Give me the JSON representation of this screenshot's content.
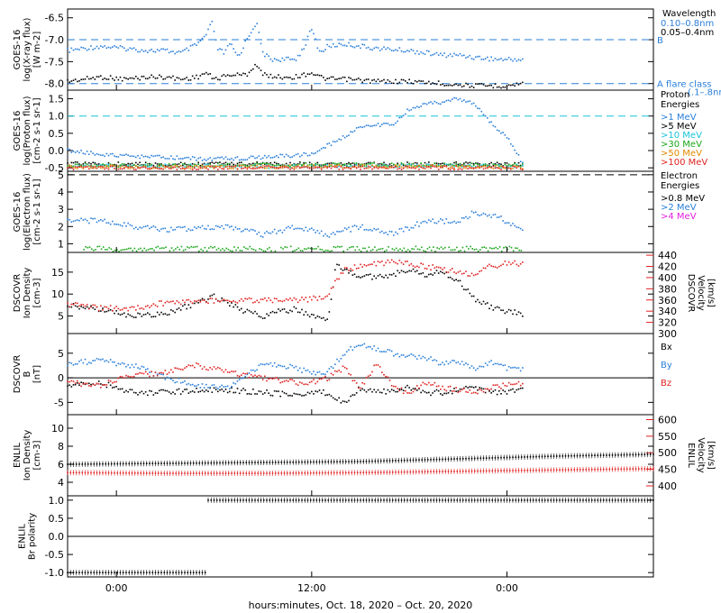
{
  "chart_data": {
    "type": "scatter",
    "x_axis": {
      "label": "hours:minutes, Oct. 18, 2020 – Oct. 20, 2020",
      "ticks": [
        "0:00",
        "12:00",
        "0:00"
      ],
      "range_hours": [
        -3,
        33
      ]
    },
    "panels": [
      {
        "id": "xray",
        "ylabel": [
          "GOES-16",
          "log(X-ray flux)",
          "[W m-2]"
        ],
        "ylim": [
          -8.15,
          -6.3
        ],
        "yticks": [
          "-6.5",
          "-7.0",
          "-7.5",
          "-8.0"
        ],
        "ytick_values": [
          -6.5,
          -7.0,
          -7.5,
          -8.0
        ],
        "legend_title": "Wavelength",
        "legend": [
          {
            "label": "0.10–0.8nm",
            "color": "#2a7fd9"
          },
          {
            "label": "0.05–0.4nm",
            "color": "#000000"
          }
        ],
        "annotations": [
          {
            "text": "B",
            "y": -7.0,
            "color": "#2a7fd9"
          },
          {
            "text": "A  flare class",
            "y": -8.0,
            "color": "#2a7fd9"
          },
          {
            "text": "(.1–.8nm)",
            "y": -8.0,
            "color": "#2a7fd9"
          }
        ],
        "series": [
          {
            "name": "0.10–0.8nm",
            "color": "#2a7fd9",
            "x": [
              -3,
              -1,
              0.5,
              2,
              3,
              4,
              5,
              5.5,
              5.9,
              6.2,
              6.6,
              7,
              7.5,
              8,
              8.6,
              9,
              9.5,
              10,
              11,
              11.5,
              12,
              12.5,
              13,
              14,
              16,
              18,
              20,
              21,
              22,
              23.5,
              24,
              25
            ],
            "y": [
              -7.25,
              -7.15,
              -7.2,
              -7.25,
              -7.25,
              -7.3,
              -7.1,
              -6.9,
              -6.6,
              -7.2,
              -7.3,
              -7.1,
              -7.4,
              -7.0,
              -6.6,
              -7.3,
              -7.45,
              -7.45,
              -7.45,
              -7.2,
              -6.75,
              -7.3,
              -7.15,
              -7.1,
              -7.2,
              -7.25,
              -7.35,
              -7.35,
              -7.4,
              -7.45,
              -7.45,
              -7.45
            ]
          },
          {
            "name": "0.05–0.4nm",
            "color": "#000000",
            "x": [
              -3,
              -1,
              0.5,
              2,
              3,
              4,
              5,
              5.5,
              6,
              6.5,
              7,
              8,
              8.6,
              9,
              10,
              11,
              12,
              12.5,
              13,
              14,
              16,
              18,
              20,
              22,
              24,
              25
            ],
            "y": [
              -7.95,
              -7.85,
              -7.9,
              -7.85,
              -7.85,
              -7.9,
              -7.85,
              -7.75,
              -7.9,
              -7.85,
              -7.8,
              -7.8,
              -7.55,
              -7.8,
              -7.85,
              -7.85,
              -7.75,
              -7.85,
              -7.9,
              -7.9,
              -7.95,
              -7.95,
              -8.0,
              -8.05,
              -8.05,
              -8.0
            ]
          }
        ]
      },
      {
        "id": "proton",
        "ylabel": [
          "GOES-16",
          "log(Proton flux)",
          "[cm-2 s-1 sr-1]"
        ],
        "ylim": [
          -0.6,
          1.75
        ],
        "yticks": [
          "1.5",
          "1.0",
          "0.5",
          "0.0",
          "-0.5"
        ],
        "ytick_values": [
          1.5,
          1.0,
          0.5,
          0.0,
          -0.5
        ],
        "legend_title": "Proton Energies",
        "legend": [
          {
            "label": ">1 MeV",
            "color": "#2a7fd9"
          },
          {
            "label": ">5 MeV",
            "color": "#000000"
          },
          {
            "label": ">10 MeV",
            "color": "#19c4d8"
          },
          {
            "label": ">30 MeV",
            "color": "#1aa61a"
          },
          {
            "label": ">50 MeV",
            "color": "#e08a00"
          },
          {
            "label": ">100 MeV",
            "color": "#e02020"
          }
        ],
        "threshold_y": 1.0,
        "series": [
          {
            "name": ">1 MeV",
            "color": "#2a7fd9",
            "x": [
              -3,
              0,
              3,
              6,
              9,
              12,
              13,
              14,
              15,
              16,
              17,
              18,
              19,
              20,
              21,
              22,
              22.5,
              23,
              24,
              25
            ],
            "y": [
              0.0,
              -0.15,
              -0.2,
              -0.25,
              -0.2,
              -0.1,
              0.15,
              0.4,
              0.7,
              0.75,
              0.75,
              1.2,
              1.35,
              1.4,
              1.5,
              1.35,
              1.1,
              0.8,
              0.4,
              -0.4
            ]
          },
          {
            "name": ">5 MeV",
            "color": "#000000",
            "x": [
              -3,
              3,
              9,
              15,
              21,
              25
            ],
            "y": [
              -0.38,
              -0.4,
              -0.38,
              -0.4,
              -0.38,
              -0.4
            ]
          },
          {
            "name": ">10 MeV",
            "color": "#19c4d8",
            "x": [
              -3,
              3,
              9,
              15,
              21,
              25
            ],
            "y": [
              -0.45,
              -0.44,
              -0.46,
              -0.45,
              -0.44,
              -0.45
            ]
          },
          {
            "name": ">30 MeV",
            "color": "#1aa61a",
            "x": [
              -3,
              3,
              9,
              15,
              21,
              25
            ],
            "y": [
              -0.42,
              -0.43,
              -0.42,
              -0.41,
              -0.42,
              -0.43
            ]
          },
          {
            "name": ">50 MeV",
            "color": "#e08a00",
            "x": [
              -3,
              3,
              9,
              15,
              21,
              25
            ],
            "y": [
              -0.47,
              -0.48,
              -0.47,
              -0.46,
              -0.47,
              -0.48
            ]
          },
          {
            "name": ">100 MeV",
            "color": "#e02020",
            "x": [
              -3,
              3,
              9,
              15,
              21,
              25
            ],
            "y": [
              -0.5,
              -0.5,
              -0.49,
              -0.5,
              -0.5,
              -0.5
            ]
          }
        ]
      },
      {
        "id": "electron",
        "ylabel": [
          "GOES-16",
          "log(Electron flux)",
          "[cm-2 s-1 sr-1]"
        ],
        "ylim": [
          0.5,
          5.2
        ],
        "yticks": [
          "5",
          "4",
          "3",
          "2",
          "1"
        ],
        "ytick_values": [
          5,
          4,
          3,
          2,
          1
        ],
        "legend_title": "Electron Energies",
        "legend": [
          {
            "label": ">0.8 MeV",
            "color": "#000000"
          },
          {
            "label": ">2 MeV",
            "color": "#2a7fd9"
          },
          {
            "label": ">4 MeV",
            "color": "#e020e0"
          }
        ],
        "threshold_y": 5.0,
        "series": [
          {
            "name": ">2 MeV",
            "color": "#2a7fd9",
            "x": [
              -3,
              -1,
              1,
              3,
              5,
              7,
              9,
              11,
              13,
              15,
              17,
              19,
              21,
              22,
              23,
              24,
              25
            ],
            "y": [
              2.4,
              2.3,
              2.0,
              1.8,
              1.9,
              2.0,
              1.5,
              2.0,
              1.5,
              2.0,
              1.6,
              2.3,
              2.3,
              2.8,
              2.7,
              2.3,
              1.8
            ]
          },
          {
            "name": ">0.8 MeV",
            "color": "#1aa61a",
            "x": [
              -2,
              2,
              6,
              10,
              14,
              18,
              22,
              25
            ],
            "y": [
              0.7,
              0.7,
              0.7,
              0.7,
              0.7,
              0.7,
              0.7,
              0.7
            ]
          }
        ]
      },
      {
        "id": "dscovr_density",
        "ylabel": [
          "DSCOVR",
          "Ion Density",
          "[cm-3]"
        ],
        "ylim": [
          1,
          19.5
        ],
        "yticks": [
          "15",
          "10",
          "5"
        ],
        "ytick_values": [
          15,
          10,
          5
        ],
        "right_ylabel": [
          "DSCOVR",
          "Velocity",
          "[km/s]"
        ],
        "right_ylim": [
          300,
          445
        ],
        "right_yticks": [
          "440",
          "420",
          "400",
          "380",
          "360",
          "340",
          "320",
          "300"
        ],
        "right_ytick_values": [
          440,
          420,
          400,
          380,
          360,
          340,
          320,
          300
        ],
        "series": [
          {
            "name": "Density",
            "color": "#000000",
            "axis": "left",
            "x": [
              -3,
              -1,
              1,
              3,
              5,
              6,
              7,
              8,
              9,
              10,
              11,
              12,
              13,
              13.5,
              14,
              15,
              16,
              17,
              18,
              19,
              20,
              21,
              22,
              23,
              24,
              25
            ],
            "y": [
              7.5,
              6.5,
              5.0,
              5.5,
              8.0,
              9.5,
              7.5,
              6.0,
              5.0,
              6.0,
              6.5,
              5.0,
              4.0,
              16.5,
              15.5,
              14.0,
              14.0,
              14.5,
              15.5,
              14.5,
              15.0,
              13.0,
              9.0,
              7.0,
              6.0,
              5.5
            ]
          },
          {
            "name": "Velocity",
            "color": "#e02020",
            "axis": "right",
            "x": [
              -3,
              -1,
              1,
              3,
              5,
              7,
              9,
              11,
              12,
              13,
              13.5,
              14,
              15,
              16,
              17,
              18,
              19,
              20,
              21,
              22,
              23,
              24,
              25
            ],
            "y": [
              352,
              345,
              345,
              355,
              358,
              358,
              360,
              360,
              362,
              365,
              395,
              415,
              420,
              425,
              428,
              425,
              420,
              415,
              410,
              405,
              420,
              425,
              425
            ]
          }
        ]
      },
      {
        "id": "dscovr_b",
        "ylabel": [
          "DSCOVR",
          "B",
          "[nT]"
        ],
        "ylim": [
          -7.5,
          9
        ],
        "yticks": [
          "5",
          "0",
          "-5"
        ],
        "ytick_values": [
          5,
          0,
          -5
        ],
        "legend": [
          {
            "label": "Bx",
            "color": "#000000"
          },
          {
            "label": "By",
            "color": "#2a7fd9"
          },
          {
            "label": "Bz",
            "color": "#e02020"
          }
        ],
        "series": [
          {
            "name": "Bx",
            "color": "#000000",
            "x": [
              -3,
              -1,
              1,
              3,
              5,
              7,
              9,
              11,
              12,
              13,
              13.5,
              14,
              15,
              16,
              17,
              18,
              19,
              20,
              21,
              22,
              23,
              24,
              25
            ],
            "y": [
              -1.5,
              -1.0,
              -3.0,
              -3.0,
              -2.5,
              -2.5,
              -3.0,
              -3.5,
              -3.0,
              -3.0,
              -4.0,
              -5.5,
              -2.0,
              -3.0,
              -2.5,
              -2.0,
              -3.0,
              -3.0,
              -2.5,
              -2.0,
              -3.0,
              -3.0,
              -2.5
            ]
          },
          {
            "name": "By",
            "color": "#2a7fd9",
            "x": [
              -3,
              -1,
              1,
              3,
              5,
              7,
              9,
              11,
              12,
              13,
              13.5,
              14,
              15,
              16,
              17,
              18,
              19,
              20,
              21,
              22,
              23,
              24,
              25
            ],
            "y": [
              3.0,
              3.5,
              2.5,
              0.0,
              -1.5,
              -2.0,
              3.0,
              2.0,
              1.0,
              1.0,
              3.0,
              5.0,
              7.0,
              6.0,
              5.0,
              4.5,
              4.0,
              3.0,
              3.0,
              2.0,
              3.0,
              2.0,
              1.5
            ]
          },
          {
            "name": "Bz",
            "color": "#e02020",
            "x": [
              -3,
              -1,
              1,
              3,
              5,
              7,
              9,
              11,
              12,
              13,
              13.5,
              14,
              15,
              16,
              17,
              18,
              19,
              20,
              21,
              22,
              23,
              24,
              25
            ],
            "y": [
              -1.0,
              -1.5,
              0.5,
              1.0,
              2.5,
              1.0,
              0.0,
              -1.0,
              -1.0,
              0.0,
              1.0,
              2.0,
              -2.0,
              3.0,
              -2.0,
              -3.0,
              -1.0,
              -2.0,
              -2.5,
              -3.0,
              -2.0,
              -1.5,
              -1.0
            ]
          }
        ]
      },
      {
        "id": "enlil_density",
        "ylabel": [
          "ENLIL",
          "Ion Density",
          "[cm-3]"
        ],
        "ylim": [
          2.5,
          11.5
        ],
        "yticks": [
          "10",
          "8",
          "6",
          "4"
        ],
        "ytick_values": [
          10,
          8,
          6,
          4
        ],
        "right_ylabel": [
          "ENLIL",
          "Velocity",
          "[km/s]"
        ],
        "right_ylim": [
          370,
          615
        ],
        "right_yticks": [
          "600",
          "550",
          "500",
          "450",
          "400"
        ],
        "right_ytick_values": [
          600,
          550,
          500,
          450,
          400
        ],
        "series": [
          {
            "name": "Density",
            "color": "#000000",
            "axis": "left",
            "x": [
              -3,
              3,
              9,
              15,
              21,
              27,
              33
            ],
            "y": [
              6.0,
              6.1,
              6.2,
              6.3,
              6.6,
              6.9,
              7.1
            ]
          },
          {
            "name": "Velocity",
            "color": "#e02020",
            "axis": "right",
            "x": [
              -3,
              3,
              9,
              15,
              21,
              27,
              33
            ],
            "y": [
              440,
              438,
              438,
              440,
              444,
              448,
              452
            ]
          }
        ]
      },
      {
        "id": "enlil_polarity",
        "ylabel": [
          "ENLIL",
          "Br polarity"
        ],
        "ylim": [
          -1.12,
          1.12
        ],
        "yticks": [
          "1.0",
          "0.5",
          "0.0",
          "-0.5",
          "-1.0"
        ],
        "ytick_values": [
          1.0,
          0.5,
          0.0,
          -0.5,
          -1.0
        ],
        "series": [
          {
            "name": "Polarity",
            "color": "#000000",
            "x": [
              -3,
              5.6,
              5.6,
              33
            ],
            "y": [
              -1.0,
              -1.0,
              1.0,
              1.0
            ]
          }
        ]
      }
    ]
  }
}
